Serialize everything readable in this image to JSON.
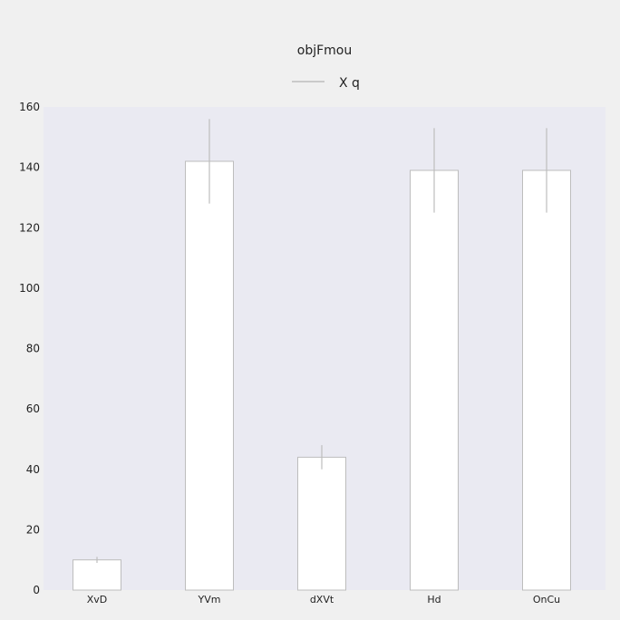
{
  "colors": {
    "page_background": "#f0f0f0",
    "plot_background": "#eaeaf2",
    "bar_fill": "#ffffff",
    "bar_edge": "#bdbdbd",
    "error_bar": "#bdbdbd",
    "text": "#222222"
  },
  "chart_data": {
    "type": "bar",
    "title": "objFmou",
    "xlabel": "",
    "ylabel": "",
    "categories": [
      "XvD",
      "YVm",
      "dXVt",
      "Hd",
      "OnCu"
    ],
    "series": [
      {
        "name": "X q",
        "values": [
          10,
          142,
          44,
          139,
          139
        ],
        "error_low": [
          9,
          128,
          40,
          125,
          125
        ],
        "error_high": [
          11,
          156,
          48,
          153,
          153
        ]
      }
    ],
    "ylim": [
      0,
      160
    ],
    "yticks": [
      "0",
      "20",
      "40",
      "60",
      "80",
      "100",
      "120",
      "140",
      "160"
    ],
    "grid": false,
    "legend_position": "top-center"
  }
}
